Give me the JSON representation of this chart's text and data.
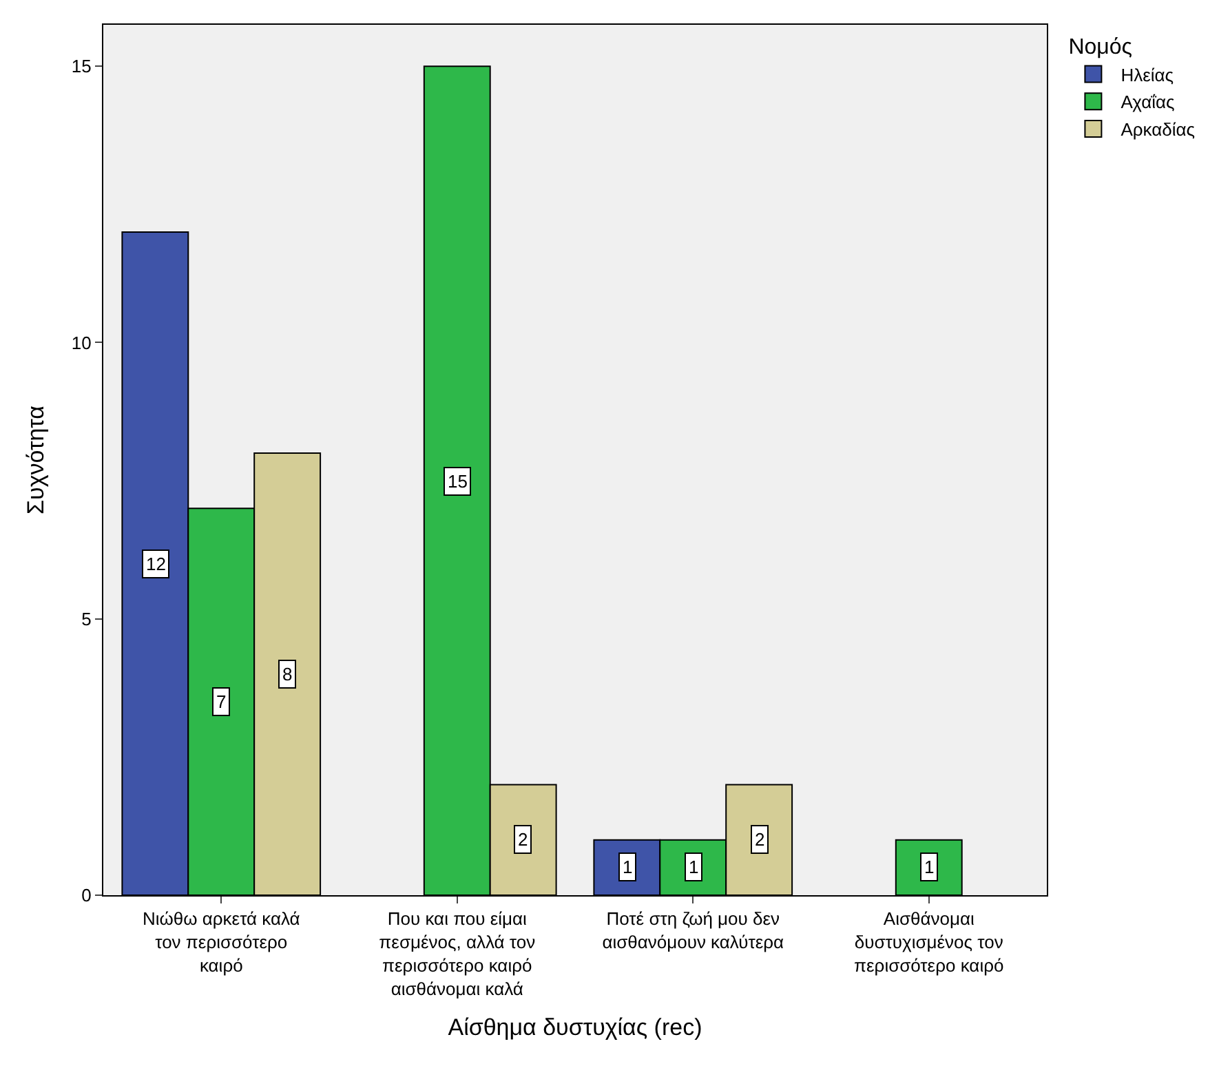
{
  "chart_data": {
    "type": "bar",
    "xlabel": "Αίσθημα δυστυχίας (rec)",
    "ylabel": "Συχνότητα",
    "legend_title": "Νομός",
    "categories": [
      "Νιώθω αρκετά καλά τον περισσότερο καιρό",
      "Που και που είμαι πεσμένος, αλλά τον περισσότερο καιρό αισθάνομαι καλά",
      "Ποτέ στη ζωή μου δεν αισθανόμουν καλύτερα",
      "Αισθάνομαι δυστυχισμένος τον περισσότερο καιρό"
    ],
    "series": [
      {
        "name": "Ηλείας",
        "color": "#3f54a8",
        "values": [
          12,
          null,
          1,
          null
        ]
      },
      {
        "name": "Αχαΐας",
        "color": "#2eb84a",
        "values": [
          7,
          15,
          1,
          1
        ]
      },
      {
        "name": "Αρκαδίας",
        "color": "#d4cd96",
        "values": [
          8,
          2,
          2,
          null
        ]
      }
    ],
    "ylim": [
      0,
      15.75
    ],
    "yticks": [
      0,
      5,
      10,
      15
    ],
    "grid": false,
    "legend": "top right",
    "data_labels": true
  }
}
